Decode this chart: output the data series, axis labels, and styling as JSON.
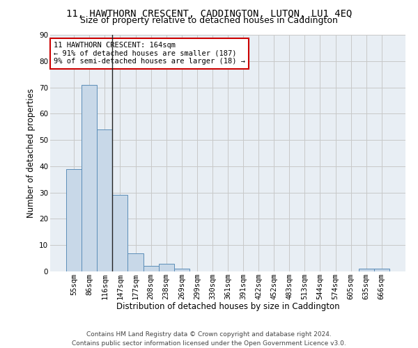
{
  "title": "11, HAWTHORN CRESCENT, CADDINGTON, LUTON, LU1 4EQ",
  "subtitle": "Size of property relative to detached houses in Caddington",
  "xlabel": "Distribution of detached houses by size in Caddington",
  "ylabel": "Number of detached properties",
  "bar_labels": [
    "55sqm",
    "86sqm",
    "116sqm",
    "147sqm",
    "177sqm",
    "208sqm",
    "238sqm",
    "269sqm",
    "299sqm",
    "330sqm",
    "361sqm",
    "391sqm",
    "422sqm",
    "452sqm",
    "483sqm",
    "513sqm",
    "544sqm",
    "574sqm",
    "605sqm",
    "635sqm",
    "666sqm"
  ],
  "bar_values": [
    39,
    71,
    54,
    29,
    7,
    2,
    3,
    1,
    0,
    0,
    0,
    0,
    0,
    0,
    0,
    0,
    0,
    0,
    0,
    1,
    1
  ],
  "bar_color": "#c8d8e8",
  "bar_edge_color": "#5b8db8",
  "vline_x_index": 3,
  "vline_color": "#222222",
  "annotation_line1": "11 HAWTHORN CRESCENT: 164sqm",
  "annotation_line2": "← 91% of detached houses are smaller (187)",
  "annotation_line3": "9% of semi-detached houses are larger (18) →",
  "annotation_box_color": "#ffffff",
  "annotation_box_edge_color": "#cc0000",
  "ylim": [
    0,
    90
  ],
  "yticks": [
    0,
    10,
    20,
    30,
    40,
    50,
    60,
    70,
    80,
    90
  ],
  "grid_color": "#c8c8c8",
  "background_color": "#e8eef4",
  "footer_line1": "Contains HM Land Registry data © Crown copyright and database right 2024.",
  "footer_line2": "Contains public sector information licensed under the Open Government Licence v3.0.",
  "title_fontsize": 10,
  "subtitle_fontsize": 9,
  "xlabel_fontsize": 8.5,
  "ylabel_fontsize": 8.5,
  "tick_fontsize": 7.5,
  "annotation_fontsize": 7.5,
  "footer_fontsize": 6.5
}
